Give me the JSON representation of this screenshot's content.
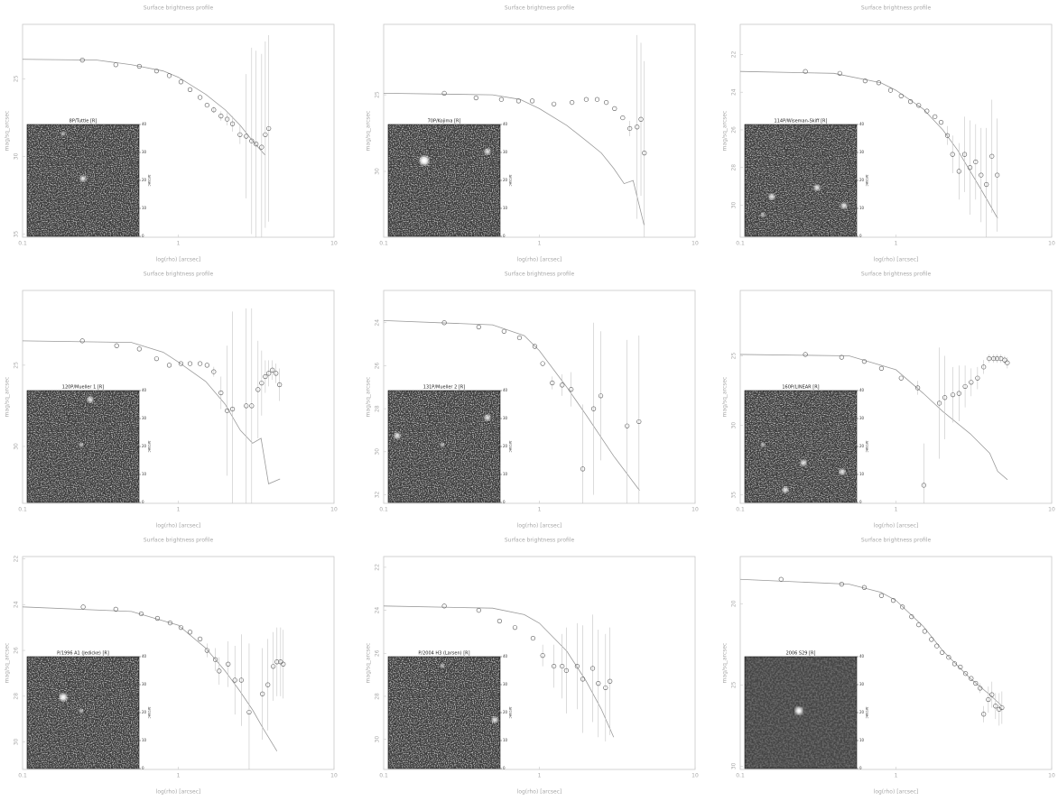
{
  "chart_data": [
    {
      "type": "profile",
      "title": "Surface brightness profile",
      "xlabel": "log(rho) [arcsec]",
      "ylabel": "mag/sq_arcsec",
      "xscale": "log",
      "xlim": [
        0.1,
        10
      ],
      "xticks": [
        0.1,
        1,
        10
      ],
      "ylim": [
        35.2,
        21.5
      ],
      "yticks": [
        25,
        30,
        35
      ],
      "points": {
        "x": [
          0.242,
          0.397,
          0.562,
          0.725,
          0.875,
          1.04,
          1.19,
          1.38,
          1.53,
          1.69,
          1.88,
          2.06,
          2.23,
          2.49,
          2.73,
          2.96,
          3.16,
          3.43,
          3.62,
          3.81
        ],
        "y": [
          23.8,
          24.1,
          24.2,
          24.5,
          24.8,
          25.2,
          25.7,
          26.2,
          26.7,
          27.0,
          27.4,
          27.6,
          27.9,
          28.6,
          28.7,
          29.0,
          29.2,
          29.4,
          28.6,
          28.2
        ],
        "errors": [
          0,
          0,
          0,
          0,
          0,
          0,
          0,
          0,
          0,
          0.2,
          0.3,
          0.4,
          0.5,
          0.6,
          4,
          6,
          6,
          6,
          6,
          6
        ]
      },
      "model": {
        "x": [
          0.1,
          0.3,
          0.5,
          0.8,
          1,
          1.5,
          2,
          2.5,
          3,
          3.6
        ],
        "y": [
          23.75,
          23.8,
          24.1,
          24.5,
          24.9,
          26.0,
          27.0,
          28.0,
          29.0,
          29.9
        ]
      },
      "inset": {
        "title": "8P/Tuttle [R]",
        "lim": [
          0,
          40
        ],
        "ticks": [
          0,
          10,
          20,
          30,
          40
        ],
        "label": "arcsec"
      }
    },
    {
      "type": "profile",
      "title": "Surface brightness profile",
      "xlabel": "log(rho) [arcsec]",
      "ylabel": "mag/sq_arcsec",
      "xscale": "log",
      "xlim": [
        0.1,
        10
      ],
      "xticks": [
        0.1,
        1,
        10
      ],
      "ylim": [
        34.3,
        20.4
      ],
      "yticks": [
        25,
        30
      ],
      "points": {
        "x": [
          0.245,
          0.392,
          0.57,
          0.735,
          0.9,
          1.24,
          1.62,
          2.0,
          2.35,
          2.69,
          3.04,
          3.43,
          3.81,
          4.24,
          4.49,
          4.72
        ],
        "y": [
          24.9,
          25.2,
          25.3,
          25.4,
          25.4,
          25.6,
          25.5,
          25.3,
          25.3,
          25.5,
          25.9,
          26.5,
          27.2,
          27.1,
          26.6,
          28.8
        ],
        "errors": [
          0,
          0,
          0,
          0,
          0,
          0,
          0,
          0,
          0,
          0,
          0,
          0,
          0.5,
          6,
          5,
          6
        ]
      },
      "model": {
        "x": [
          0.1,
          0.5,
          0.75,
          1,
          1.5,
          2,
          2.5,
          3,
          3.5,
          4,
          4.7
        ],
        "y": [
          24.9,
          25.0,
          25.3,
          25.9,
          27.0,
          28.0,
          28.8,
          29.8,
          30.8,
          30.6,
          33.5
        ]
      },
      "inset": {
        "title": "70P/Kojima [R]",
        "lim": [
          0,
          40
        ],
        "ticks": [
          0,
          10,
          20,
          30,
          40
        ],
        "label": "arcsec"
      }
    },
    {
      "type": "profile",
      "title": "Surface brightness profile",
      "xlabel": "log(rho) [arcsec]",
      "ylabel": "mag/sq_arcsec",
      "xscale": "log",
      "xlim": [
        0.1,
        10
      ],
      "xticks": [
        0.1,
        1,
        10
      ],
      "ylim": [
        31.7,
        20.4
      ],
      "yticks": [
        22,
        24,
        26,
        28,
        30
      ],
      "points": {
        "x": [
          0.262,
          0.436,
          0.634,
          0.775,
          0.923,
          1.08,
          1.24,
          1.4,
          1.58,
          1.78,
          1.95,
          2.14,
          2.31,
          2.54,
          2.76,
          2.99,
          3.25,
          3.52,
          3.81,
          4.13,
          4.47
        ],
        "y": [
          22.9,
          23.0,
          23.4,
          23.5,
          23.9,
          24.2,
          24.5,
          24.7,
          25.0,
          25.3,
          25.6,
          26.3,
          27.3,
          28.2,
          27.3,
          28.0,
          27.7,
          28.4,
          28.9,
          27.4,
          28.4
        ],
        "errors": [
          0,
          0,
          0,
          0,
          0,
          0,
          0,
          0,
          0,
          0,
          0,
          0.5,
          1,
          1.5,
          2,
          2.5,
          2,
          2.5,
          3,
          3,
          3
        ]
      },
      "model": {
        "x": [
          0.1,
          0.4,
          0.8,
          1,
          1.5,
          2,
          2.5,
          3,
          3.6,
          4.5
        ],
        "y": [
          22.9,
          23.0,
          23.5,
          23.9,
          24.9,
          26.0,
          27.1,
          28.2,
          29.3,
          30.7
        ]
      },
      "inset": {
        "title": "114P/Wiseman-Skiff [R]",
        "lim": [
          0,
          40
        ],
        "ticks": [
          0,
          10,
          20,
          30,
          40
        ],
        "label": "arcsec"
      }
    },
    {
      "type": "profile",
      "title": "Surface brightness profile",
      "xlabel": "log(rho) [arcsec]",
      "ylabel": "mag/sq_arcsec",
      "xscale": "log",
      "xlim": [
        0.1,
        10
      ],
      "xticks": [
        0.1,
        1,
        10
      ],
      "ylim": [
        33.5,
        20.4
      ],
      "yticks": [
        25,
        30
      ],
      "points": {
        "x": [
          0.242,
          0.402,
          0.562,
          0.725,
          0.875,
          1.04,
          1.19,
          1.38,
          1.53,
          1.69,
          1.88,
          2.06,
          2.23,
          2.73,
          2.96,
          3.25,
          3.43,
          3.62,
          3.81,
          4.02,
          4.24,
          4.47
        ],
        "y": [
          23.5,
          23.8,
          24.0,
          24.6,
          25.0,
          24.9,
          24.9,
          24.9,
          25.0,
          25.4,
          26.7,
          27.8,
          27.7,
          27.5,
          27.5,
          26.5,
          26.1,
          25.7,
          25.5,
          25.3,
          25.5,
          26.2
        ],
        "errors": [
          0,
          0,
          0,
          0,
          0,
          0,
          0,
          0,
          0,
          0.3,
          1,
          4,
          6,
          6,
          6,
          3,
          2,
          1,
          0.8,
          0.6,
          0.6,
          1
        ]
      },
      "model": {
        "x": [
          0.1,
          0.5,
          0.8,
          1,
          1.5,
          2,
          2.5,
          3,
          3.4,
          3.8,
          4.5
        ],
        "y": [
          23.5,
          23.6,
          24.2,
          24.8,
          26.0,
          27.4,
          29.0,
          29.8,
          29.5,
          32.3,
          32.0
        ]
      },
      "inset": {
        "title": "120P/Mueller 1 [R]",
        "lim": [
          0,
          40
        ],
        "ticks": [
          0,
          10,
          20,
          30,
          40
        ],
        "label": "arcsec"
      }
    },
    {
      "type": "profile",
      "title": "Surface brightness profile",
      "xlabel": "log(rho) [arcsec]",
      "ylabel": "mag/sq_arcsec",
      "xscale": "log",
      "xlim": [
        0.1,
        10
      ],
      "xticks": [
        0.1,
        1,
        10
      ],
      "ylim": [
        32.4,
        22.5
      ],
      "yticks": [
        24,
        26,
        28,
        30,
        32
      ],
      "points": {
        "x": [
          0.245,
          0.408,
          0.593,
          0.745,
          0.935,
          1.05,
          1.21,
          1.4,
          1.6,
          1.9,
          2.23,
          2.48,
          3.66,
          4.36
        ],
        "y": [
          24.0,
          24.2,
          24.4,
          24.7,
          25.1,
          25.9,
          26.8,
          26.9,
          27.1,
          30.8,
          28.0,
          27.4,
          28.8,
          28.6
        ],
        "errors": [
          0,
          0,
          0,
          0,
          0,
          0,
          0.3,
          0.5,
          0.8,
          3,
          4,
          3,
          4,
          4
        ]
      },
      "model": {
        "x": [
          0.1,
          0.5,
          0.8,
          1,
          1.5,
          2,
          3,
          4.4
        ],
        "y": [
          23.9,
          24.1,
          24.6,
          25.3,
          27.0,
          28.3,
          30.2,
          31.8
        ]
      },
      "inset": {
        "title": "131P/Mueller 2 [R]",
        "lim": [
          0,
          40
        ],
        "ticks": [
          0,
          10,
          20,
          30,
          40
        ],
        "label": "arcsec"
      }
    },
    {
      "type": "profile",
      "title": "Surface brightness profile",
      "xlabel": "log(rho) [arcsec]",
      "ylabel": "mag/sq_arcsec",
      "xscale": "log",
      "xlim": [
        0.1,
        10
      ],
      "xticks": [
        0.1,
        1,
        10
      ],
      "ylim": [
        35.6,
        20.3
      ],
      "yticks": [
        25,
        30,
        35
      ],
      "points": {
        "x": [
          0.262,
          0.448,
          0.626,
          0.807,
          1.08,
          1.38,
          1.51,
          1.9,
          2.06,
          2.32,
          2.54,
          2.78,
          3.04,
          3.34,
          3.66,
          3.97,
          4.24,
          4.47,
          4.72,
          4.99,
          5.19
        ],
        "y": [
          24.9,
          25.1,
          25.4,
          25.9,
          26.6,
          27.3,
          34.3,
          28.4,
          28.0,
          27.8,
          27.7,
          27.2,
          26.9,
          26.6,
          25.8,
          25.2,
          25.2,
          25.2,
          25.2,
          25.3,
          25.5
        ],
        "errors": [
          0,
          0,
          0,
          0,
          0,
          0.5,
          3,
          4,
          3,
          2,
          2,
          1.5,
          1,
          0.8,
          0.5,
          0.3,
          0.3,
          0.3,
          0.3,
          0.3,
          0.4
        ]
      },
      "model": {
        "x": [
          0.1,
          0.5,
          1,
          1.5,
          2,
          3,
          4,
          4.5,
          5.2
        ],
        "y": [
          24.9,
          25.0,
          26.0,
          27.7,
          29.0,
          30.6,
          32.0,
          33.3,
          33.9
        ]
      },
      "inset": {
        "title": "160P/LINEAR [R]",
        "lim": [
          0,
          40
        ],
        "ticks": [
          0,
          10,
          20,
          30,
          40
        ],
        "label": "arcsec"
      }
    },
    {
      "type": "profile",
      "title": "Surface brightness profile",
      "xlabel": "log(rho) [arcsec]",
      "ylabel": "mag/sq_arcsec",
      "xscale": "log",
      "xlim": [
        0.1,
        10
      ],
      "xticks": [
        0.1,
        1,
        10
      ],
      "ylim": [
        31.2,
        21.9
      ],
      "yticks": [
        22,
        24,
        26,
        28,
        30
      ],
      "points": {
        "x": [
          0.245,
          0.397,
          0.578,
          0.735,
          0.886,
          1.04,
          1.19,
          1.38,
          1.53,
          1.73,
          1.83,
          2.09,
          2.31,
          2.54,
          2.85,
          3.47,
          3.76,
          4.07,
          4.3,
          4.54,
          4.72
        ],
        "y": [
          24.1,
          24.2,
          24.4,
          24.6,
          24.8,
          25.0,
          25.2,
          25.5,
          26.0,
          26.4,
          26.9,
          26.6,
          27.3,
          27.3,
          28.7,
          27.9,
          27.5,
          26.7,
          26.5,
          26.5,
          26.6
        ],
        "errors": [
          0,
          0,
          0,
          0,
          0,
          0,
          0,
          0,
          0.3,
          0.5,
          0.6,
          1,
          1.5,
          2,
          3,
          2,
          2,
          1.5,
          1.5,
          1.5,
          1.5
        ]
      },
      "model": {
        "x": [
          0.1,
          0.5,
          1,
          1.5,
          2,
          2.5,
          3,
          3.5,
          4.3
        ],
        "y": [
          24.1,
          24.3,
          24.9,
          25.9,
          26.9,
          27.8,
          28.6,
          29.4,
          30.4
        ]
      },
      "inset": {
        "title": "P/1996 A1 (Jedicke) [R]",
        "lim": [
          0,
          40
        ],
        "ticks": [
          0,
          10,
          20,
          30,
          40
        ],
        "label": "arcsec"
      }
    },
    {
      "type": "profile",
      "title": "Surface brightness profile",
      "xlabel": "log(rho) [arcsec]",
      "ylabel": "mag/sq_arcsec",
      "xscale": "log",
      "xlim": [
        0.1,
        10
      ],
      "xticks": [
        0.1,
        1,
        10
      ],
      "ylim": [
        31.4,
        21.5
      ],
      "yticks": [
        22,
        24,
        26,
        28,
        30
      ],
      "points": {
        "x": [
          0.245,
          0.408,
          0.555,
          0.697,
          0.91,
          1.05,
          1.24,
          1.4,
          1.49,
          1.75,
          1.9,
          2.2,
          2.39,
          2.66,
          2.84
        ],
        "y": [
          23.8,
          24.0,
          24.5,
          24.8,
          25.3,
          26.1,
          26.6,
          26.6,
          26.8,
          26.6,
          27.2,
          26.7,
          27.4,
          27.6,
          27.3
        ],
        "errors": [
          0,
          0,
          0,
          0,
          0,
          0.5,
          1,
          1.5,
          2,
          2,
          2.5,
          2.5,
          2.5,
          2.5,
          2.5
        ]
      },
      "model": {
        "x": [
          0.1,
          0.5,
          0.8,
          1,
          1.5,
          2,
          2.5,
          3
        ],
        "y": [
          23.8,
          23.9,
          24.2,
          24.6,
          25.9,
          27.3,
          28.6,
          29.9
        ]
      },
      "inset": {
        "title": "P/2004 H3 (Larsen) [R]",
        "lim": [
          0,
          40
        ],
        "ticks": [
          0,
          10,
          20,
          30,
          40
        ],
        "label": "arcsec"
      }
    },
    {
      "type": "profile",
      "title": "Surface brightness profile",
      "xlabel": "log(rho) [arcsec]",
      "ylabel": "mag/sq_arcsec",
      "xscale": "log",
      "xlim": [
        0.1,
        10
      ],
      "xticks": [
        0.1,
        1,
        10
      ],
      "ylim": [
        30.2,
        17.1
      ],
      "yticks": [
        20,
        25,
        30
      ],
      "points": {
        "x": [
          0.183,
          0.448,
          0.626,
          0.807,
          0.961,
          1.1,
          1.26,
          1.4,
          1.53,
          1.69,
          1.83,
          1.98,
          2.18,
          2.38,
          2.59,
          2.8,
          3.04,
          3.25,
          3.47,
          3.66,
          3.92,
          4.13,
          4.36,
          4.6,
          4.79
        ],
        "y": [
          18.5,
          18.8,
          19.0,
          19.5,
          19.8,
          20.2,
          20.8,
          21.3,
          21.7,
          22.2,
          22.6,
          23.0,
          23.3,
          23.7,
          23.9,
          24.3,
          24.6,
          24.9,
          25.2,
          26.8,
          25.9,
          25.6,
          26.3,
          26.5,
          26.4
        ],
        "errors": [
          0,
          0,
          0,
          0,
          0,
          0,
          0,
          0,
          0,
          0,
          0,
          0,
          0,
          0,
          0,
          0,
          0,
          0,
          0.3,
          0.5,
          0.8,
          0.8,
          0.8,
          1,
          1
        ]
      },
      "model": {
        "x": [
          0.1,
          0.5,
          0.8,
          1,
          1.5,
          2,
          3,
          4,
          4.8
        ],
        "y": [
          18.5,
          18.8,
          19.3,
          19.8,
          21.4,
          22.9,
          24.6,
          25.6,
          26.3
        ]
      },
      "inset": {
        "title": "2006 S29 [R]",
        "lim": [
          0,
          40
        ],
        "ticks": [
          0,
          10,
          20,
          30,
          40
        ],
        "label": "arcsec"
      }
    }
  ]
}
